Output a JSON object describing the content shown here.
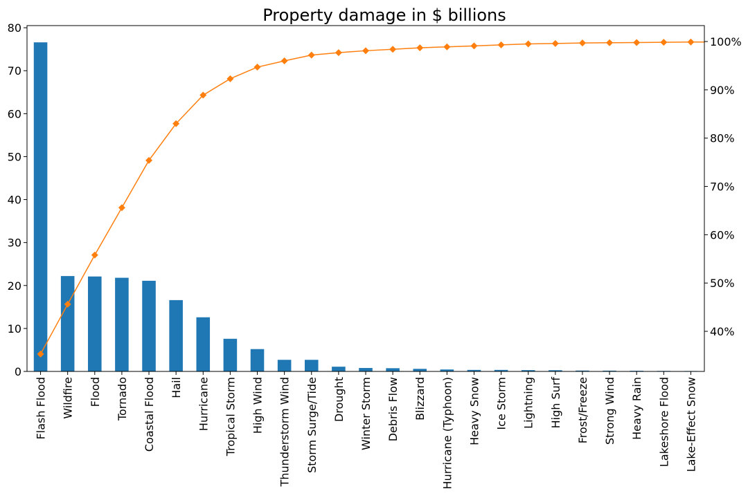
{
  "chart_data": {
    "type": "bar",
    "title": "Property damage in $ billions",
    "xlabel": "",
    "ylabel": "",
    "categories": [
      "Flash Flood",
      "Wildfire",
      "Flood",
      "Tornado",
      "Coastal Flood",
      "Hail",
      "Hurricane",
      "Tropical Storm",
      "High Wind",
      "Thunderstorm Wind",
      "Storm Surge/Tide",
      "Drought",
      "Winter Storm",
      "Debris Flow",
      "Blizzard",
      "Hurricane (Typhoon)",
      "Heavy Snow",
      "Ice Storm",
      "Lightning",
      "High Surf",
      "Frost/Freeze",
      "Strong Wind",
      "Heavy Rain",
      "Lakeshore Flood",
      "Lake-Effect Snow"
    ],
    "series": [
      {
        "type": "bar",
        "values": [
          76.6,
          22.2,
          22.1,
          21.8,
          21.1,
          16.6,
          12.6,
          7.6,
          5.2,
          2.7,
          2.7,
          1.1,
          0.8,
          0.75,
          0.6,
          0.45,
          0.35,
          0.35,
          0.3,
          0.28,
          0.2,
          0.18,
          0.15,
          0.12,
          0.1
        ],
        "color": "#1f77b4"
      },
      {
        "type": "line",
        "values": [
          35.3,
          45.6,
          55.8,
          65.6,
          75.4,
          83.0,
          88.9,
          92.3,
          94.7,
          96.0,
          97.2,
          97.7,
          98.1,
          98.4,
          98.7,
          98.9,
          99.1,
          99.3,
          99.5,
          99.6,
          99.7,
          99.75,
          99.8,
          99.85,
          99.9
        ],
        "color": "#ff7f0e",
        "marker": "diamond",
        "axis": "right"
      }
    ],
    "y_left": {
      "ylim": [
        0,
        80.5
      ],
      "ticks": [
        0,
        10,
        20,
        30,
        40,
        50,
        60,
        70,
        80
      ]
    },
    "y_right": {
      "ylim": [
        31.7,
        103.3
      ],
      "ticks": [
        40,
        50,
        60,
        70,
        80,
        90,
        100
      ],
      "tick_suffix": "%"
    },
    "grid": false
  }
}
